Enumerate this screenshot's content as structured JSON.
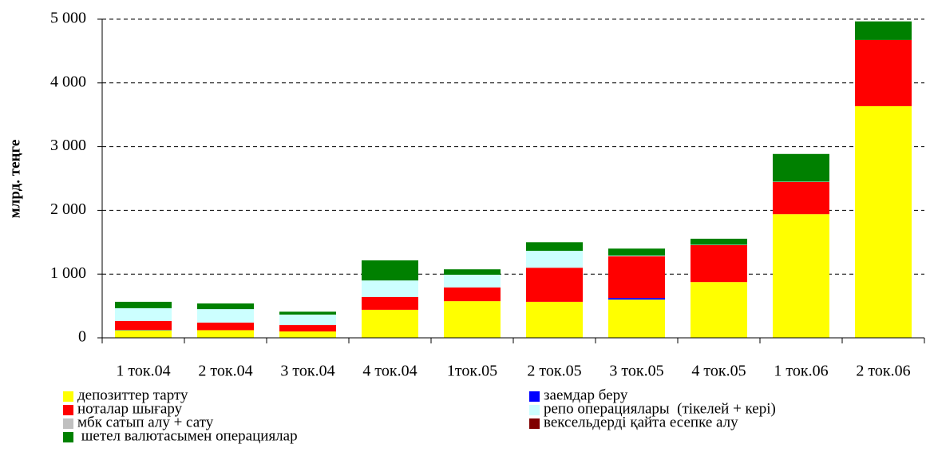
{
  "chart_data": {
    "type": "stacked_bar",
    "y_label": "млрд. теңге",
    "categories": [
      "1 ток.04",
      "2 ток.04",
      "3 ток.04",
      "4 ток.04",
      "1ток.05",
      "2 ток.05",
      "3 ток.05",
      "4 ток.05",
      "1 ток.06",
      "2 ток.06"
    ],
    "series": [
      {
        "name": "депозиттер тарту",
        "color": "#ffff00",
        "values": [
          120,
          120,
          100,
          440,
          575,
          565,
          600,
          875,
          1940,
          3635
        ]
      },
      {
        "name": "заемдар беру",
        "color": "#0000ff",
        "values": [
          5,
          0,
          0,
          0,
          0,
          0,
          25,
          0,
          0,
          0
        ]
      },
      {
        "name": "ноталар шығару",
        "color": "#ff0000",
        "values": [
          140,
          120,
          100,
          200,
          215,
          535,
          655,
          580,
          505,
          1040
        ]
      },
      {
        "name": "репо операциялары  (тікелей + кері)",
        "color": "#ccffff",
        "values": [
          200,
          210,
          165,
          260,
          200,
          265,
          10,
          5,
          5,
          0
        ]
      },
      {
        "name": "мбк сатып алу + сату",
        "color": "#c0c0c0",
        "values": [
          0,
          0,
          0,
          0,
          0,
          0,
          0,
          0,
          0,
          0
        ]
      },
      {
        "name": "вексельдерді қайта есепке алу",
        "color": "#800000",
        "values": [
          0,
          0,
          0,
          0,
          0,
          0,
          0,
          0,
          0,
          0
        ]
      },
      {
        "name": " шетел валютасымен операциялар",
        "color": "#008000",
        "values": [
          100,
          90,
          45,
          315,
          85,
          135,
          110,
          95,
          435,
          290
        ]
      }
    ],
    "ylim": [
      0,
      5000
    ],
    "yticks": [
      0,
      {
        "value": 1000,
        "label": "1 000"
      },
      {
        "value": 2000,
        "label": "2 000"
      },
      {
        "value": 3000,
        "label": "3 000"
      },
      {
        "value": 4000,
        "label": "4 000"
      },
      {
        "value": 5000,
        "label": "5 000"
      }
    ],
    "grid": true
  }
}
